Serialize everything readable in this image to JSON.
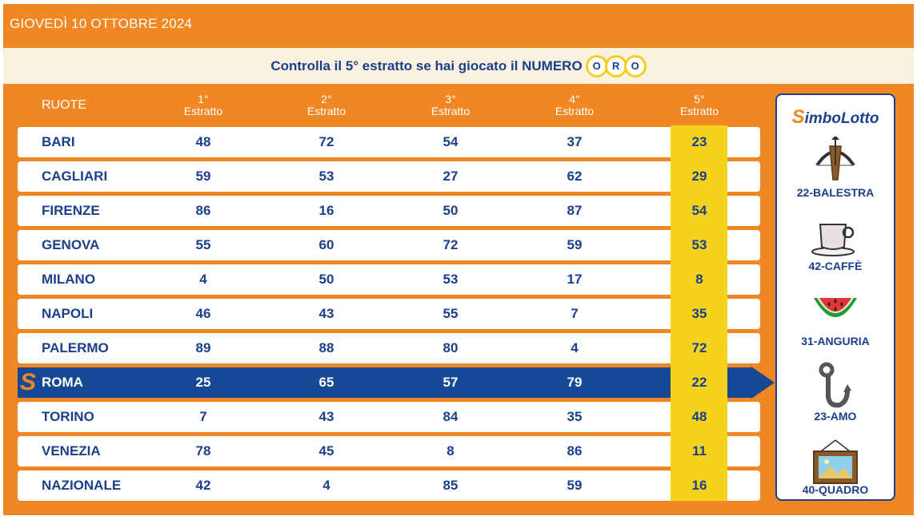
{
  "header": {
    "date": "GIOVEDÌ 10 OTTOBRE 2024"
  },
  "banner": {
    "text": "Controlla il 5° estratto se hai giocato il NUMERO",
    "letters": [
      "O",
      "R",
      "O"
    ]
  },
  "columns": {
    "ruote": "RUOTE",
    "e1": {
      "ord": "1°",
      "label": "Estratto"
    },
    "e2": {
      "ord": "2°",
      "label": "Estratto"
    },
    "e3": {
      "ord": "3°",
      "label": "Estratto"
    },
    "e4": {
      "ord": "4°",
      "label": "Estratto"
    },
    "e5": {
      "ord": "5°",
      "label": "Estratto"
    }
  },
  "rows": [
    {
      "name": "BARI",
      "n": [
        "48",
        "72",
        "54",
        "37",
        "23"
      ]
    },
    {
      "name": "CAGLIARI",
      "n": [
        "59",
        "53",
        "27",
        "62",
        "29"
      ]
    },
    {
      "name": "FIRENZE",
      "n": [
        "86",
        "16",
        "50",
        "87",
        "54"
      ]
    },
    {
      "name": "GENOVA",
      "n": [
        "55",
        "60",
        "72",
        "59",
        "53"
      ]
    },
    {
      "name": "MILANO",
      "n": [
        "4",
        "50",
        "53",
        "17",
        "8"
      ]
    },
    {
      "name": "NAPOLI",
      "n": [
        "46",
        "43",
        "55",
        "7",
        "35"
      ]
    },
    {
      "name": "PALERMO",
      "n": [
        "89",
        "88",
        "80",
        "4",
        "72"
      ]
    },
    {
      "name": "ROMA",
      "n": [
        "25",
        "65",
        "57",
        "79",
        "22"
      ],
      "highlight": true
    },
    {
      "name": "TORINO",
      "n": [
        "7",
        "43",
        "84",
        "35",
        "48"
      ]
    },
    {
      "name": "VENEZIA",
      "n": [
        "78",
        "45",
        "8",
        "86",
        "11"
      ]
    },
    {
      "name": "NAZIONALE",
      "n": [
        "42",
        "4",
        "85",
        "59",
        "16"
      ]
    }
  ],
  "simbolotto": {
    "brand_s": "S",
    "brand_rest": "imboLotto",
    "symbols": [
      {
        "label": "22-BALESTRA",
        "icon": "crossbow-icon"
      },
      {
        "label": "42-CAFFÈ",
        "icon": "coffee-cup-icon"
      },
      {
        "label": "31-ANGURIA",
        "icon": "watermelon-icon"
      },
      {
        "label": "23-AMO",
        "icon": "fishhook-icon"
      },
      {
        "label": "40-QUADRO",
        "icon": "painting-icon"
      }
    ]
  },
  "colors": {
    "orange": "#f08722",
    "navy": "#164995",
    "yellow": "#f5d21c",
    "cream": "#fbf1e0"
  }
}
